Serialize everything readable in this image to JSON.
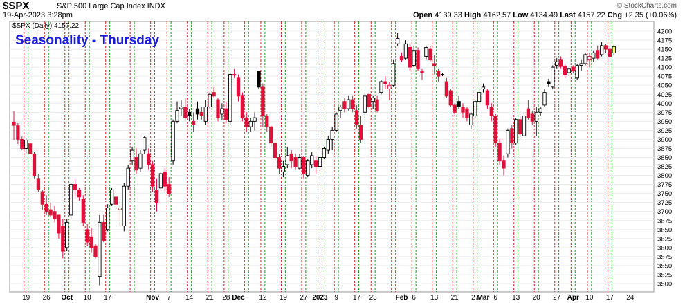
{
  "header": {
    "symbol": "$SPX",
    "description": "S&P 500 Large Cap Index  INDX",
    "date": "19-Apr-2023 3:28pm",
    "credit": "© StockCharts.com",
    "ohlc": {
      "open_label": "Open",
      "open": "4139.33",
      "high_label": "High",
      "high": "4162.57",
      "low_label": "Low",
      "low": "4134.49",
      "last_label": "Last",
      "last": "4157.22",
      "chg_label": "Chg",
      "chg": "+2.35 (+0.06%)"
    }
  },
  "chart_data": {
    "type": "candlestick",
    "title": "Seasonality - Thursday",
    "legend": "$SPX (Daily) 4157.22",
    "ylim": [
      3500,
      4200
    ],
    "y_ticks": [
      4200,
      4175,
      4150,
      4125,
      4100,
      4075,
      4050,
      4025,
      4000,
      3975,
      3950,
      3925,
      3900,
      3875,
      3850,
      3825,
      3800,
      3775,
      3750,
      3725,
      3700,
      3675,
      3650,
      3625,
      3600,
      3575,
      3550,
      3525,
      3500
    ],
    "x_labels": [
      {
        "i": 3,
        "label": "19",
        "bold": false
      },
      {
        "i": 8,
        "label": "26",
        "bold": false
      },
      {
        "i": 13,
        "label": "Oct",
        "bold": true
      },
      {
        "i": 18,
        "label": "10",
        "bold": false
      },
      {
        "i": 23,
        "label": "17",
        "bold": false
      },
      {
        "i": 34,
        "label": "Nov",
        "bold": true
      },
      {
        "i": 38,
        "label": "7",
        "bold": false
      },
      {
        "i": 43,
        "label": "14",
        "bold": false
      },
      {
        "i": 48,
        "label": "21",
        "bold": false
      },
      {
        "i": 52,
        "label": "28",
        "bold": false
      },
      {
        "i": 55,
        "label": "Dec",
        "bold": true
      },
      {
        "i": 61,
        "label": "12",
        "bold": false
      },
      {
        "i": 66,
        "label": "19",
        "bold": false
      },
      {
        "i": 71,
        "label": "27",
        "bold": false
      },
      {
        "i": 75,
        "label": "2023",
        "bold": true
      },
      {
        "i": 79,
        "label": "9",
        "bold": false
      },
      {
        "i": 84,
        "label": "17",
        "bold": false
      },
      {
        "i": 88,
        "label": "23",
        "bold": false
      },
      {
        "i": 95,
        "label": "Feb",
        "bold": true
      },
      {
        "i": 98,
        "label": "6",
        "bold": false
      },
      {
        "i": 103,
        "label": "13",
        "bold": false
      },
      {
        "i": 108,
        "label": "21",
        "bold": false
      },
      {
        "i": 113,
        "label": "27",
        "bold": false
      },
      {
        "i": 115,
        "label": "Mar",
        "bold": true
      },
      {
        "i": 118,
        "label": "6",
        "bold": false
      },
      {
        "i": 123,
        "label": "13",
        "bold": false
      },
      {
        "i": 128,
        "label": "20",
        "bold": false
      },
      {
        "i": 133,
        "label": "27",
        "bold": false
      },
      {
        "i": 137,
        "label": "Apr",
        "bold": true
      },
      {
        "i": 141,
        "label": "10",
        "bold": false
      },
      {
        "i": 146,
        "label": "17",
        "bold": false
      },
      {
        "i": 151,
        "label": "24",
        "bold": false
      }
    ],
    "red_lines": [
      2,
      7,
      12,
      17,
      22,
      28,
      33,
      37,
      42,
      47,
      51,
      56,
      60,
      65,
      70,
      74,
      78,
      83,
      87,
      92,
      97,
      102,
      107,
      112,
      117,
      122,
      127,
      132,
      136,
      140,
      145
    ],
    "green_lines": [
      3,
      8,
      13,
      18,
      23,
      29,
      34,
      38,
      43,
      48,
      52,
      57,
      61,
      66,
      71,
      75,
      79,
      84,
      88,
      93,
      98,
      103,
      108,
      113,
      118,
      123,
      128,
      133,
      137,
      141,
      146
    ],
    "candles": [
      [
        3946,
        3978,
        3898,
        3939
      ],
      [
        3938,
        3945,
        3887,
        3900
      ],
      [
        3900,
        3908,
        3870,
        3875
      ],
      [
        3875,
        3905,
        3860,
        3898
      ],
      [
        3888,
        3890,
        3855,
        3860
      ],
      [
        3860,
        3865,
        3790,
        3800
      ],
      [
        3790,
        3805,
        3755,
        3760
      ],
      [
        3755,
        3760,
        3705,
        3720
      ],
      [
        3720,
        3745,
        3690,
        3700
      ],
      [
        3705,
        3725,
        3685,
        3690
      ],
      [
        3700,
        3715,
        3670,
        3680
      ],
      [
        3690,
        3690,
        3625,
        3640
      ],
      [
        3660,
        3680,
        3570,
        3590
      ],
      [
        3600,
        3680,
        3590,
        3670
      ],
      [
        3690,
        3780,
        3680,
        3775
      ],
      [
        3775,
        3790,
        3740,
        3760
      ],
      [
        3760,
        3765,
        3730,
        3740
      ],
      [
        3735,
        3745,
        3660,
        3670
      ],
      [
        3650,
        3665,
        3605,
        3615
      ],
      [
        3630,
        3655,
        3585,
        3600
      ],
      [
        3605,
        3610,
        3570,
        3575
      ],
      [
        3520,
        3690,
        3495,
        3670
      ],
      [
        3670,
        3690,
        3615,
        3620
      ],
      [
        3650,
        3720,
        3645,
        3710
      ],
      [
        3720,
        3765,
        3715,
        3760
      ],
      [
        3740,
        3760,
        3705,
        3720
      ],
      [
        3705,
        3730,
        3660,
        3710
      ],
      [
        3660,
        3780,
        3645,
        3770
      ],
      [
        3770,
        3830,
        3760,
        3820
      ],
      [
        3840,
        3880,
        3830,
        3870
      ],
      [
        3850,
        3875,
        3805,
        3815
      ],
      [
        3820,
        3870,
        3810,
        3860
      ],
      [
        3870,
        3910,
        3860,
        3905
      ],
      [
        3860,
        3875,
        3815,
        3830
      ],
      [
        3830,
        3840,
        3755,
        3770
      ],
      [
        3760,
        3790,
        3700,
        3725
      ],
      [
        3765,
        3810,
        3760,
        3805
      ],
      [
        3810,
        3820,
        3755,
        3770
      ],
      [
        3775,
        3795,
        3740,
        3750
      ],
      [
        3840,
        3955,
        3830,
        3950
      ],
      [
        3950,
        4005,
        3945,
        3980
      ],
      [
        3985,
        4010,
        3965,
        3990
      ],
      [
        3990,
        4015,
        3955,
        3960
      ],
      [
        3975,
        3985,
        3950,
        3965
      ],
      [
        3950,
        3975,
        3920,
        3940
      ],
      [
        3985,
        4005,
        3955,
        3970
      ],
      [
        3975,
        3990,
        3955,
        3965
      ],
      [
        3950,
        4010,
        3940,
        3990
      ],
      [
        3990,
        4030,
        3985,
        4025
      ],
      [
        4030,
        4045,
        4015,
        4020
      ],
      [
        4010,
        4015,
        3950,
        3960
      ],
      [
        3970,
        4000,
        3955,
        3985
      ],
      [
        3985,
        4005,
        3945,
        3955
      ],
      [
        3950,
        4085,
        3940,
        4080
      ],
      [
        4080,
        4095,
        4070,
        4078
      ],
      [
        4070,
        4080,
        4005,
        4020
      ],
      [
        4020,
        4030,
        3950,
        3960
      ],
      [
        3960,
        3975,
        3920,
        3935
      ],
      [
        3935,
        3960,
        3920,
        3950
      ],
      [
        3950,
        3975,
        3925,
        3960
      ],
      [
        4088,
        4090,
        4040,
        4045
      ],
      [
        4045,
        4055,
        3935,
        3965
      ],
      [
        3965,
        3970,
        3920,
        3935
      ],
      [
        3935,
        3940,
        3880,
        3890
      ],
      [
        3890,
        3900,
        3840,
        3850
      ],
      [
        3850,
        3860,
        3805,
        3820
      ],
      [
        3810,
        3840,
        3795,
        3825
      ],
      [
        3830,
        3880,
        3820,
        3855
      ],
      [
        3860,
        3870,
        3820,
        3840
      ],
      [
        3850,
        3860,
        3815,
        3825
      ],
      [
        3820,
        3860,
        3815,
        3850
      ],
      [
        3850,
        3855,
        3790,
        3805
      ],
      [
        3800,
        3845,
        3795,
        3840
      ],
      [
        3830,
        3865,
        3820,
        3855
      ],
      [
        3840,
        3855,
        3805,
        3825
      ],
      [
        3825,
        3860,
        3815,
        3850
      ],
      [
        3850,
        3880,
        3845,
        3875
      ],
      [
        3870,
        3910,
        3860,
        3900
      ],
      [
        3900,
        3935,
        3870,
        3925
      ],
      [
        3925,
        3975,
        3920,
        3970
      ],
      [
        3980,
        3995,
        3960,
        3990
      ],
      [
        4005,
        4015,
        3975,
        3985
      ],
      [
        3985,
        4020,
        3980,
        4010
      ],
      [
        4010,
        4020,
        3975,
        3985
      ],
      [
        3980,
        3995,
        3930,
        3940
      ],
      [
        3940,
        3965,
        3890,
        3900
      ],
      [
        3975,
        4030,
        3960,
        4020
      ],
      [
        4025,
        4030,
        3985,
        3990
      ],
      [
        4005,
        4020,
        3985,
        4015
      ],
      [
        4010,
        4020,
        3975,
        3980
      ],
      [
        4030,
        4065,
        4025,
        4060
      ],
      [
        4060,
        4075,
        4040,
        4055
      ],
      [
        4040,
        4060,
        4010,
        4050
      ],
      [
        4050,
        4120,
        4045,
        4110
      ],
      [
        4165,
        4195,
        4160,
        4180
      ],
      [
        4130,
        4140,
        4115,
        4120
      ],
      [
        4125,
        4175,
        4120,
        4165
      ],
      [
        4155,
        4165,
        4090,
        4100
      ],
      [
        4105,
        4160,
        4100,
        4145
      ],
      [
        4145,
        4155,
        4090,
        4095
      ],
      [
        4090,
        4095,
        4065,
        4085
      ],
      [
        4130,
        4160,
        4120,
        4155
      ],
      [
        4150,
        4160,
        4115,
        4120
      ],
      [
        4110,
        4135,
        4080,
        4105
      ],
      [
        4090,
        4095,
        4060,
        4075
      ],
      [
        4080,
        4085,
        4075,
        4079
      ],
      [
        4060,
        4070,
        4015,
        4020
      ],
      [
        4035,
        4040,
        3990,
        3995
      ],
      [
        3995,
        4000,
        3965,
        3975
      ],
      [
        4005,
        4020,
        3985,
        3990
      ],
      [
        3990,
        4000,
        3960,
        3975
      ],
      [
        3985,
        3990,
        3950,
        3960
      ],
      [
        3940,
        3975,
        3930,
        3970
      ],
      [
        3965,
        4010,
        3960,
        4005
      ],
      [
        4005,
        4040,
        4000,
        4030
      ],
      [
        4040,
        4055,
        4030,
        4045
      ],
      [
        4035,
        4040,
        3985,
        3995
      ],
      [
        3990,
        4000,
        3950,
        3965
      ],
      [
        3965,
        3970,
        3880,
        3890
      ],
      [
        3890,
        3900,
        3830,
        3840
      ],
      [
        3840,
        3855,
        3800,
        3820
      ],
      [
        3860,
        3930,
        3850,
        3925
      ],
      [
        3930,
        3940,
        3875,
        3890
      ],
      [
        3890,
        3960,
        3885,
        3955
      ],
      [
        3955,
        3965,
        3900,
        3915
      ],
      [
        3910,
        3975,
        3900,
        3965
      ],
      [
        3985,
        4010,
        3955,
        3960
      ],
      [
        3970,
        3980,
        3940,
        3950
      ],
      [
        3950,
        3990,
        3910,
        3975
      ],
      [
        3975,
        3990,
        3965,
        3985
      ],
      [
        3995,
        4040,
        3990,
        4030
      ],
      [
        4060,
        4068,
        4045,
        4055
      ],
      [
        4045,
        4105,
        4040,
        4100
      ],
      [
        4105,
        4125,
        4095,
        4115
      ],
      [
        4120,
        4130,
        4095,
        4102
      ],
      [
        4102,
        4110,
        4070,
        4080
      ],
      [
        4085,
        4100,
        4075,
        4095
      ],
      [
        4100,
        4105,
        4085,
        4090
      ],
      [
        4070,
        4110,
        4065,
        4105
      ],
      [
        4105,
        4120,
        4090,
        4110
      ],
      [
        4110,
        4140,
        4105,
        4135
      ],
      [
        4120,
        4140,
        4100,
        4130
      ],
      [
        4125,
        4145,
        4115,
        4140
      ],
      [
        4145,
        4160,
        4120,
        4125
      ],
      [
        4135,
        4170,
        4130,
        4160
      ],
      [
        4160,
        4165,
        4140,
        4150
      ],
      [
        4150,
        4158,
        4122,
        4130
      ],
      [
        4139.33,
        4162.57,
        4134.49,
        4157.22
      ]
    ]
  }
}
